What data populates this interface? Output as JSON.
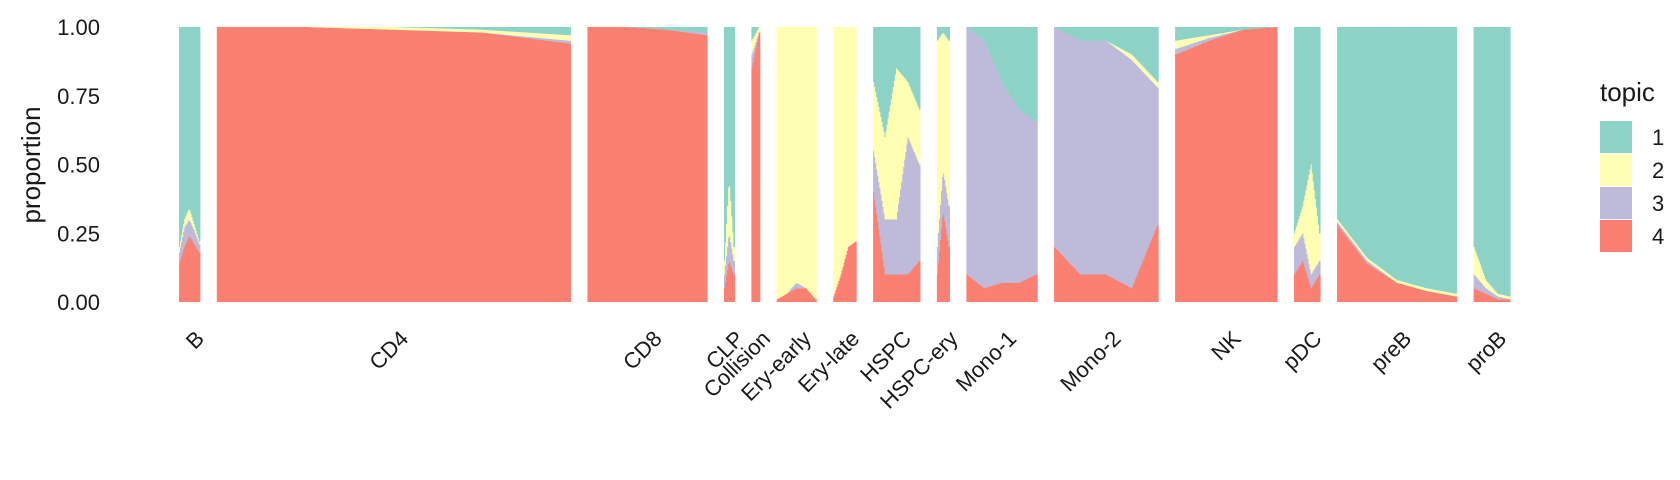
{
  "chart_data": {
    "type": "bar",
    "stacked": true,
    "title": "",
    "xlabel": "",
    "ylabel": "proportion",
    "ylim": [
      0,
      1
    ],
    "y_ticks": [
      "0.00",
      "0.25",
      "0.50",
      "0.75",
      "1.00"
    ],
    "legend": {
      "title": "topic",
      "position": "right"
    },
    "series": [
      {
        "name": "1",
        "color": "#8dd3c7"
      },
      {
        "name": "2",
        "color": "#ffffb3"
      },
      {
        "name": "3",
        "color": "#bebada"
      },
      {
        "name": "4",
        "color": "#fb8072"
      }
    ],
    "groups": [
      {
        "label": "B",
        "n_cells": 20,
        "profile": [
          [
            0.8,
            0.02,
            0.04,
            0.14
          ],
          [
            0.7,
            0.03,
            0.07,
            0.2
          ],
          [
            0.66,
            0.04,
            0.06,
            0.24
          ],
          [
            0.72,
            0.02,
            0.05,
            0.21
          ],
          [
            0.78,
            0.01,
            0.03,
            0.18
          ]
        ]
      },
      {
        "label": "CD4",
        "n_cells": 340,
        "profile": [
          [
            0.0,
            0.0,
            0.0,
            1.0
          ],
          [
            0.0,
            0.0,
            0.0,
            1.0
          ],
          [
            0.0,
            0.01,
            0.0,
            0.99
          ],
          [
            0.01,
            0.01,
            0.0,
            0.98
          ],
          [
            0.03,
            0.02,
            0.01,
            0.94
          ]
        ]
      },
      {
        "label": "CD8",
        "n_cells": 115,
        "profile": [
          [
            0.0,
            0.0,
            0.0,
            1.0
          ],
          [
            0.0,
            0.0,
            0.0,
            1.0
          ],
          [
            0.01,
            0.0,
            0.0,
            0.99
          ],
          [
            0.02,
            0.0,
            0.01,
            0.97
          ]
        ]
      },
      {
        "label": "CLP",
        "n_cells": 10,
        "profile": [
          [
            0.85,
            0.05,
            0.05,
            0.05
          ],
          [
            0.55,
            0.2,
            0.1,
            0.15
          ],
          [
            0.8,
            0.05,
            0.05,
            0.1
          ]
        ]
      },
      {
        "label": "Collision",
        "n_cells": 8,
        "profile": [
          [
            0.05,
            0.05,
            0.05,
            0.85
          ],
          [
            0.0,
            0.02,
            0.0,
            0.98
          ]
        ]
      },
      {
        "label": "Ery-early",
        "n_cells": 38,
        "profile": [
          [
            0.0,
            0.99,
            0.0,
            0.01
          ],
          [
            0.0,
            0.97,
            0.0,
            0.03
          ],
          [
            0.0,
            0.93,
            0.02,
            0.05
          ],
          [
            0.0,
            0.95,
            0.0,
            0.05
          ],
          [
            0.0,
            0.99,
            0.0,
            0.01
          ]
        ]
      },
      {
        "label": "Ery-late",
        "n_cells": 22,
        "profile": [
          [
            0.0,
            0.98,
            0.0,
            0.02
          ],
          [
            0.0,
            0.9,
            0.0,
            0.1
          ],
          [
            0.0,
            0.8,
            0.0,
            0.2
          ],
          [
            0.0,
            0.78,
            0.0,
            0.22
          ]
        ]
      },
      {
        "label": "HSPC",
        "n_cells": 45,
        "profile": [
          [
            0.2,
            0.25,
            0.15,
            0.4
          ],
          [
            0.4,
            0.3,
            0.2,
            0.1
          ],
          [
            0.15,
            0.55,
            0.2,
            0.1
          ],
          [
            0.2,
            0.2,
            0.5,
            0.1
          ],
          [
            0.3,
            0.2,
            0.35,
            0.15
          ]
        ]
      },
      {
        "label": "HSPC-ery",
        "n_cells": 12,
        "profile": [
          [
            0.05,
            0.75,
            0.1,
            0.1
          ],
          [
            0.02,
            0.5,
            0.15,
            0.33
          ],
          [
            0.05,
            0.6,
            0.15,
            0.2
          ]
        ]
      },
      {
        "label": "Mono-1",
        "n_cells": 68,
        "profile": [
          [
            0.0,
            0.0,
            0.9,
            0.1
          ],
          [
            0.05,
            0.0,
            0.9,
            0.05
          ],
          [
            0.2,
            0.0,
            0.73,
            0.07
          ],
          [
            0.3,
            0.0,
            0.63,
            0.07
          ],
          [
            0.35,
            0.0,
            0.55,
            0.1
          ]
        ]
      },
      {
        "label": "Mono-2",
        "n_cells": 100,
        "profile": [
          [
            0.0,
            0.0,
            0.8,
            0.2
          ],
          [
            0.05,
            0.0,
            0.85,
            0.1
          ],
          [
            0.05,
            0.0,
            0.85,
            0.1
          ],
          [
            0.1,
            0.02,
            0.83,
            0.05
          ],
          [
            0.2,
            0.02,
            0.5,
            0.28
          ]
        ]
      },
      {
        "label": "NK",
        "n_cells": 98,
        "profile": [
          [
            0.05,
            0.03,
            0.02,
            0.9
          ],
          [
            0.03,
            0.01,
            0.01,
            0.95
          ],
          [
            0.01,
            0.0,
            0.0,
            0.99
          ],
          [
            0.0,
            0.0,
            0.0,
            1.0
          ]
        ]
      },
      {
        "label": "pDC",
        "n_cells": 25,
        "profile": [
          [
            0.75,
            0.05,
            0.1,
            0.1
          ],
          [
            0.65,
            0.1,
            0.1,
            0.15
          ],
          [
            0.5,
            0.4,
            0.05,
            0.05
          ],
          [
            0.75,
            0.1,
            0.05,
            0.1
          ]
        ]
      },
      {
        "label": "preB",
        "n_cells": 115,
        "profile": [
          [
            0.7,
            0.01,
            0.01,
            0.28
          ],
          [
            0.84,
            0.01,
            0.01,
            0.14
          ],
          [
            0.92,
            0.01,
            0.0,
            0.07
          ],
          [
            0.95,
            0.01,
            0.0,
            0.04
          ],
          [
            0.97,
            0.01,
            0.0,
            0.02
          ]
        ]
      },
      {
        "label": "proB",
        "n_cells": 35,
        "profile": [
          [
            0.8,
            0.1,
            0.05,
            0.05
          ],
          [
            0.92,
            0.03,
            0.02,
            0.03
          ],
          [
            0.97,
            0.01,
            0.01,
            0.01
          ],
          [
            0.98,
            0.01,
            0.0,
            0.01
          ]
        ]
      }
    ]
  }
}
